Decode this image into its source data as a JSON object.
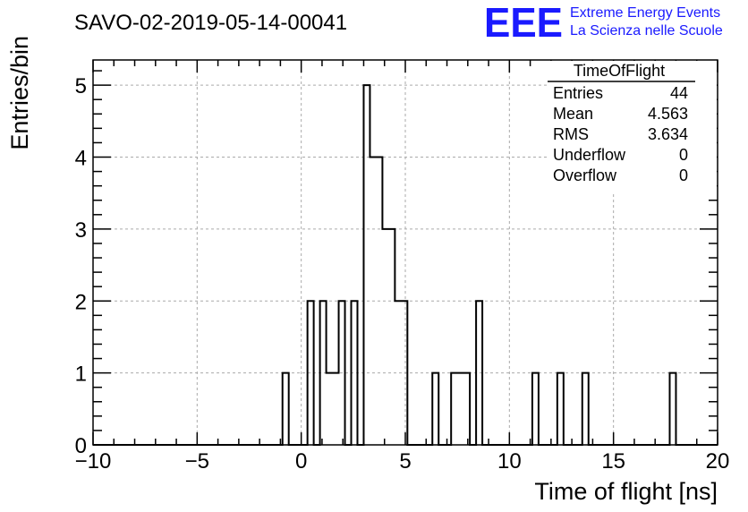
{
  "chart_data": {
    "type": "bar",
    "title": "SAVO-02-2019-05-14-00041",
    "xlabel": "Time of flight [ns]",
    "ylabel": "Entries/bin",
    "xlim": [
      -10,
      20
    ],
    "ylim": [
      0,
      5.35
    ],
    "grid": true,
    "bin_width": 0.3,
    "bins": [
      {
        "x": -0.9,
        "value": 1
      },
      {
        "x": 0.3,
        "value": 2
      },
      {
        "x": 0.9,
        "value": 2
      },
      {
        "x": 1.2,
        "value": 1
      },
      {
        "x": 1.5,
        "value": 1
      },
      {
        "x": 1.8,
        "value": 2
      },
      {
        "x": 2.4,
        "value": 2
      },
      {
        "x": 3.0,
        "value": 5
      },
      {
        "x": 3.3,
        "value": 4
      },
      {
        "x": 3.6,
        "value": 4
      },
      {
        "x": 3.9,
        "value": 3
      },
      {
        "x": 4.2,
        "value": 3
      },
      {
        "x": 4.5,
        "value": 2
      },
      {
        "x": 4.8,
        "value": 2
      },
      {
        "x": 6.3,
        "value": 1
      },
      {
        "x": 7.2,
        "value": 1
      },
      {
        "x": 7.5,
        "value": 1
      },
      {
        "x": 7.8,
        "value": 1
      },
      {
        "x": 8.4,
        "value": 2
      },
      {
        "x": 11.1,
        "value": 1
      },
      {
        "x": 12.3,
        "value": 1
      },
      {
        "x": 13.5,
        "value": 1
      },
      {
        "x": 17.7,
        "value": 1
      }
    ],
    "x_ticks": [
      -10,
      -5,
      0,
      5,
      10,
      15,
      20
    ],
    "x_tick_labels": [
      "−10",
      "−5",
      "0",
      "5",
      "10",
      "15",
      "20"
    ],
    "y_ticks": [
      0,
      1,
      2,
      3,
      4,
      5
    ],
    "y_tick_labels": [
      "0",
      "1",
      "2",
      "3",
      "4",
      "5"
    ],
    "stats": {
      "name": "TimeOfFlight",
      "rows": [
        {
          "label": "Entries",
          "value": "44"
        },
        {
          "label": "Mean",
          "value": "4.563"
        },
        {
          "label": "RMS",
          "value": "3.634"
        },
        {
          "label": "Underflow",
          "value": "0"
        },
        {
          "label": "Overflow",
          "value": "0"
        }
      ]
    }
  },
  "logo": {
    "mark": "EEE",
    "line1": "Extreme Energy Events",
    "line2": "La Scienza nelle Scuole",
    "color": "#1a1aff"
  }
}
